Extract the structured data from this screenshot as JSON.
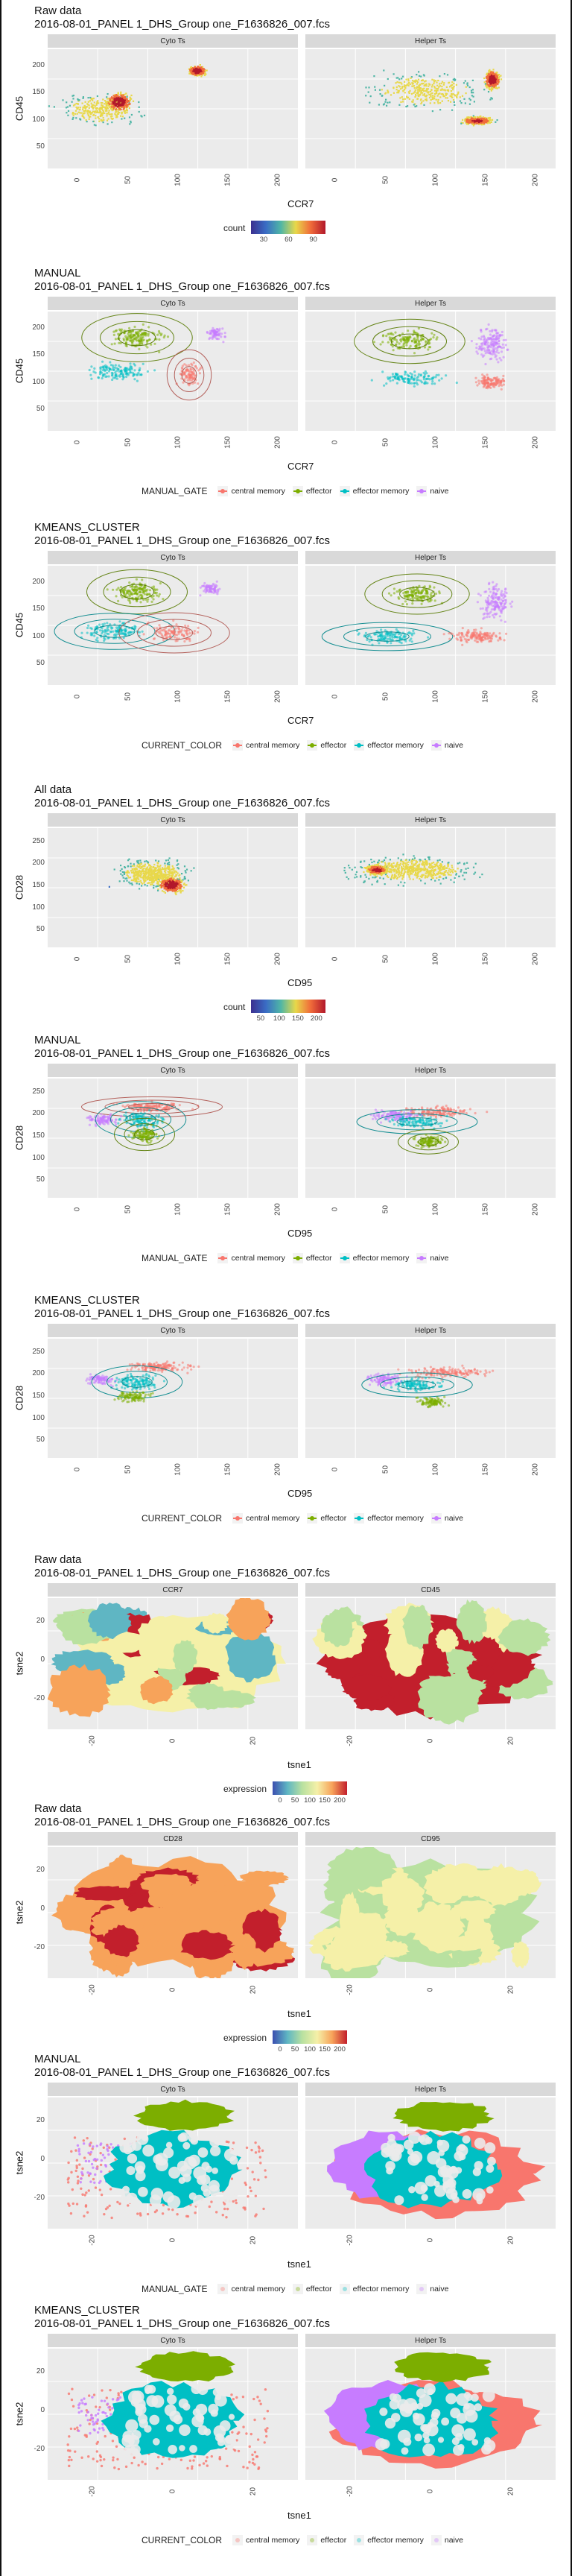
{
  "file": "2016-08-01_PANEL 1_DHS_Group one_F1636826_007.fcs",
  "colors": {
    "central_memory": "#F8766D",
    "effector": "#7CAE00",
    "effector_memory": "#00BFC4",
    "naive": "#C77CFF",
    "panel_bg": "#ebebeb",
    "strip_bg": "#d9d9d9"
  },
  "legend_labels": [
    "central memory",
    "effector",
    "effector memory",
    "naive"
  ],
  "sections": [
    {
      "title": "Raw data",
      "kind": "density",
      "facets": [
        "Cyto Ts",
        "Helper Ts"
      ],
      "xlabel": "CCR7",
      "ylabel": "CD45",
      "xticks": [
        "0",
        "50",
        "100",
        "150",
        "200"
      ],
      "yticks": [
        "200",
        "150",
        "100",
        "50"
      ],
      "legend_title": "count",
      "legend_ticks": [
        "30",
        "60",
        "90"
      ]
    },
    {
      "title": "MANUAL",
      "kind": "groups",
      "facets": [
        "Cyto Ts",
        "Helper Ts"
      ],
      "xlabel": "CCR7",
      "ylabel": "CD45",
      "xticks": [
        "0",
        "50",
        "100",
        "150",
        "200"
      ],
      "yticks": [
        "200",
        "150",
        "100",
        "50"
      ],
      "legend_title": "MANUAL_GATE"
    },
    {
      "title": "KMEANS_CLUSTER",
      "kind": "groups",
      "facets": [
        "Cyto Ts",
        "Helper Ts"
      ],
      "xlabel": "CCR7",
      "ylabel": "CD45",
      "xticks": [
        "0",
        "50",
        "100",
        "150",
        "200"
      ],
      "yticks": [
        "200",
        "150",
        "100",
        "50"
      ],
      "legend_title": "CURRENT_COLOR"
    },
    {
      "title": "All data",
      "kind": "density",
      "facets": [
        "Cyto Ts",
        "Helper Ts"
      ],
      "xlabel": "CD95",
      "ylabel": "CD28",
      "xticks": [
        "0",
        "50",
        "100",
        "150",
        "200"
      ],
      "yticks": [
        "250",
        "200",
        "150",
        "100",
        "50"
      ],
      "legend_title": "count",
      "legend_ticks": [
        "50",
        "100",
        "150",
        "200"
      ]
    },
    {
      "title": "MANUAL",
      "kind": "groups2",
      "facets": [
        "Cyto Ts",
        "Helper Ts"
      ],
      "xlabel": "CD95",
      "ylabel": "CD28",
      "xticks": [
        "0",
        "50",
        "100",
        "150",
        "200"
      ],
      "yticks": [
        "250",
        "200",
        "150",
        "100",
        "50"
      ],
      "legend_title": "MANUAL_GATE"
    },
    {
      "title": "KMEANS_CLUSTER",
      "kind": "groups2",
      "facets": [
        "Cyto Ts",
        "Helper Ts"
      ],
      "xlabel": "CD95",
      "ylabel": "CD28",
      "xticks": [
        "0",
        "50",
        "100",
        "150",
        "200"
      ],
      "yticks": [
        "250",
        "200",
        "150",
        "100",
        "50"
      ],
      "legend_title": "CURRENT_COLOR"
    },
    {
      "title": "Raw data",
      "kind": "tsne_expr",
      "facets": [
        "CCR7",
        "CD45"
      ],
      "xlabel": "tsne1",
      "ylabel": "tsne2",
      "xticks": [
        "-20",
        "0",
        "20"
      ],
      "yticks": [
        "20",
        "0",
        "-20"
      ],
      "legend_title": "expression",
      "legend_ticks": [
        "0",
        "50",
        "100",
        "150",
        "200"
      ]
    },
    {
      "title": "Raw data",
      "kind": "tsne_expr",
      "facets": [
        "CD28",
        "CD95"
      ],
      "xlabel": "tsne1",
      "ylabel": "tsne2",
      "xticks": [
        "-20",
        "0",
        "20"
      ],
      "yticks": [
        "20",
        "0",
        "-20"
      ],
      "legend_title": "expression",
      "legend_ticks": [
        "0",
        "50",
        "100",
        "150",
        "200"
      ]
    },
    {
      "title": "MANUAL",
      "kind": "tsne_groups",
      "facets": [
        "Cyto Ts",
        "Helper Ts"
      ],
      "xlabel": "tsne1",
      "ylabel": "tsne2",
      "xticks": [
        "-20",
        "0",
        "20"
      ],
      "yticks": [
        "20",
        "0",
        "-20"
      ],
      "legend_title": "MANUAL_GATE"
    },
    {
      "title": "KMEANS_CLUSTER",
      "kind": "tsne_groups",
      "facets": [
        "Cyto Ts",
        "Helper Ts"
      ],
      "xlabel": "tsne1",
      "ylabel": "tsne2",
      "xticks": [
        "-20",
        "0",
        "20"
      ],
      "yticks": [
        "20",
        "0",
        "-20"
      ],
      "legend_title": "CURRENT_COLOR"
    }
  ],
  "chart_data": [
    {
      "type": "heatmap",
      "title": "Raw data",
      "facets": [
        "Cyto Ts",
        "Helper Ts"
      ],
      "xlabel": "CCR7",
      "ylabel": "CD45",
      "xlim": [
        0,
        210
      ],
      "ylim": [
        40,
        220
      ],
      "legend": "count",
      "legend_ticks": [
        30,
        60,
        90
      ]
    },
    {
      "type": "scatter",
      "title": "MANUAL",
      "facets": [
        "Cyto Ts",
        "Helper Ts"
      ],
      "xlabel": "CCR7",
      "ylabel": "CD45",
      "xlim": [
        0,
        210
      ],
      "ylim": [
        40,
        220
      ],
      "legend": "MANUAL_GATE",
      "series": [
        {
          "name": "central memory"
        },
        {
          "name": "effector"
        },
        {
          "name": "effector memory"
        },
        {
          "name": "naive"
        }
      ]
    },
    {
      "type": "scatter",
      "title": "KMEANS_CLUSTER",
      "facets": [
        "Cyto Ts",
        "Helper Ts"
      ],
      "xlabel": "CCR7",
      "ylabel": "CD45",
      "xlim": [
        0,
        210
      ],
      "ylim": [
        40,
        220
      ],
      "legend": "CURRENT_COLOR",
      "series": [
        {
          "name": "central memory"
        },
        {
          "name": "effector"
        },
        {
          "name": "effector memory"
        },
        {
          "name": "naive"
        }
      ]
    },
    {
      "type": "heatmap",
      "title": "All data",
      "facets": [
        "Cyto Ts",
        "Helper Ts"
      ],
      "xlabel": "CD95",
      "ylabel": "CD28",
      "xlim": [
        0,
        210
      ],
      "ylim": [
        20,
        270
      ],
      "legend": "count",
      "legend_ticks": [
        50,
        100,
        150,
        200
      ]
    },
    {
      "type": "scatter",
      "title": "MANUAL",
      "facets": [
        "Cyto Ts",
        "Helper Ts"
      ],
      "xlabel": "CD95",
      "ylabel": "CD28",
      "xlim": [
        0,
        210
      ],
      "ylim": [
        20,
        270
      ],
      "legend": "MANUAL_GATE",
      "series": [
        {
          "name": "central memory"
        },
        {
          "name": "effector"
        },
        {
          "name": "effector memory"
        },
        {
          "name": "naive"
        }
      ]
    },
    {
      "type": "scatter",
      "title": "KMEANS_CLUSTER",
      "facets": [
        "Cyto Ts",
        "Helper Ts"
      ],
      "xlabel": "CD95",
      "ylabel": "CD28",
      "xlim": [
        0,
        210
      ],
      "ylim": [
        20,
        270
      ],
      "legend": "CURRENT_COLOR",
      "series": [
        {
          "name": "central memory"
        },
        {
          "name": "effector"
        },
        {
          "name": "effector memory"
        },
        {
          "name": "naive"
        }
      ]
    },
    {
      "type": "scatter",
      "title": "Raw data",
      "facets": [
        "CCR7",
        "CD45"
      ],
      "xlabel": "tsne1",
      "ylabel": "tsne2",
      "xlim": [
        -35,
        35
      ],
      "ylim": [
        -35,
        35
      ],
      "legend": "expression",
      "legend_ticks": [
        0,
        50,
        100,
        150,
        200
      ]
    },
    {
      "type": "scatter",
      "title": "Raw data",
      "facets": [
        "CD28",
        "CD95"
      ],
      "xlabel": "tsne1",
      "ylabel": "tsne2",
      "xlim": [
        -35,
        35
      ],
      "ylim": [
        -35,
        35
      ],
      "legend": "expression",
      "legend_ticks": [
        0,
        50,
        100,
        150,
        200
      ]
    },
    {
      "type": "scatter",
      "title": "MANUAL",
      "facets": [
        "Cyto Ts",
        "Helper Ts"
      ],
      "xlabel": "tsne1",
      "ylabel": "tsne2",
      "xlim": [
        -35,
        35
      ],
      "ylim": [
        -35,
        35
      ],
      "legend": "MANUAL_GATE",
      "series": [
        {
          "name": "central memory"
        },
        {
          "name": "effector"
        },
        {
          "name": "effector memory"
        },
        {
          "name": "naive"
        }
      ]
    },
    {
      "type": "scatter",
      "title": "KMEANS_CLUSTER",
      "facets": [
        "Cyto Ts",
        "Helper Ts"
      ],
      "xlabel": "tsne1",
      "ylabel": "tsne2",
      "xlim": [
        -35,
        35
      ],
      "ylim": [
        -35,
        35
      ],
      "legend": "CURRENT_COLOR",
      "series": [
        {
          "name": "central memory"
        },
        {
          "name": "effector"
        },
        {
          "name": "effector memory"
        },
        {
          "name": "naive"
        }
      ]
    }
  ]
}
